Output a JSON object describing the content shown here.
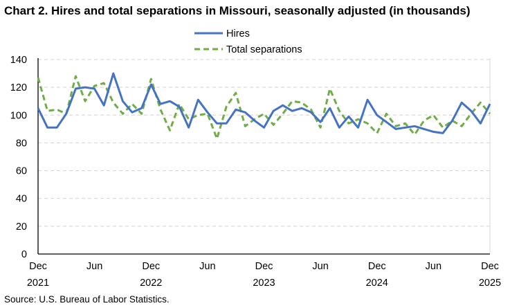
{
  "chart_data": {
    "type": "line",
    "title": "Chart 2. Hires and total separations in Missouri, seasonally adjusted (in thousands)",
    "source": "Source: U.S. Bureau of Labor Statistics.",
    "x_start": "Dec 2021",
    "x_end": "Dec 2025",
    "x_frequency": "monthly",
    "x_tick_labels": [
      {
        "index": 0,
        "month": "Dec",
        "year": "2021"
      },
      {
        "index": 6,
        "month": "Jun",
        "year": ""
      },
      {
        "index": 12,
        "month": "Dec",
        "year": "2022"
      },
      {
        "index": 18,
        "month": "Jun",
        "year": ""
      },
      {
        "index": 24,
        "month": "Dec",
        "year": "2023"
      },
      {
        "index": 30,
        "month": "Jun",
        "year": ""
      },
      {
        "index": 36,
        "month": "Dec",
        "year": "2024"
      },
      {
        "index": 42,
        "month": "Jun",
        "year": ""
      },
      {
        "index": 48,
        "month": "Dec",
        "year": "2025"
      }
    ],
    "ylim": [
      0,
      140
    ],
    "y_ticks": [
      0,
      20,
      40,
      60,
      80,
      100,
      120,
      140
    ],
    "grid": "horizontal dashed",
    "legend_placement": "top-center",
    "series": [
      {
        "name": "Hires",
        "color": "#4472C4",
        "style": "solid",
        "values": [
          105,
          91,
          91,
          101,
          119,
          120,
          119,
          107,
          130,
          110,
          102,
          105,
          122,
          108,
          110,
          106,
          91,
          111,
          102,
          94,
          94,
          104,
          102,
          96,
          91,
          103,
          107,
          103,
          105,
          102,
          95,
          105,
          91,
          99,
          91,
          111,
          100,
          95,
          90,
          91,
          92,
          90,
          88,
          87,
          96,
          109,
          103,
          94,
          108
        ]
      },
      {
        "name": "Total separations",
        "color": "#70AD47",
        "style": "dashed",
        "values": [
          127,
          103,
          104,
          101,
          128,
          110,
          121,
          123,
          109,
          101,
          108,
          101,
          126,
          104,
          89,
          108,
          97,
          100,
          101,
          83,
          106,
          116,
          92,
          97,
          101,
          93,
          101,
          110,
          109,
          104,
          91,
          119,
          103,
          94,
          97,
          94,
          87,
          101,
          92,
          94,
          86,
          96,
          100,
          91,
          96,
          92,
          101,
          109,
          101
        ]
      }
    ]
  }
}
